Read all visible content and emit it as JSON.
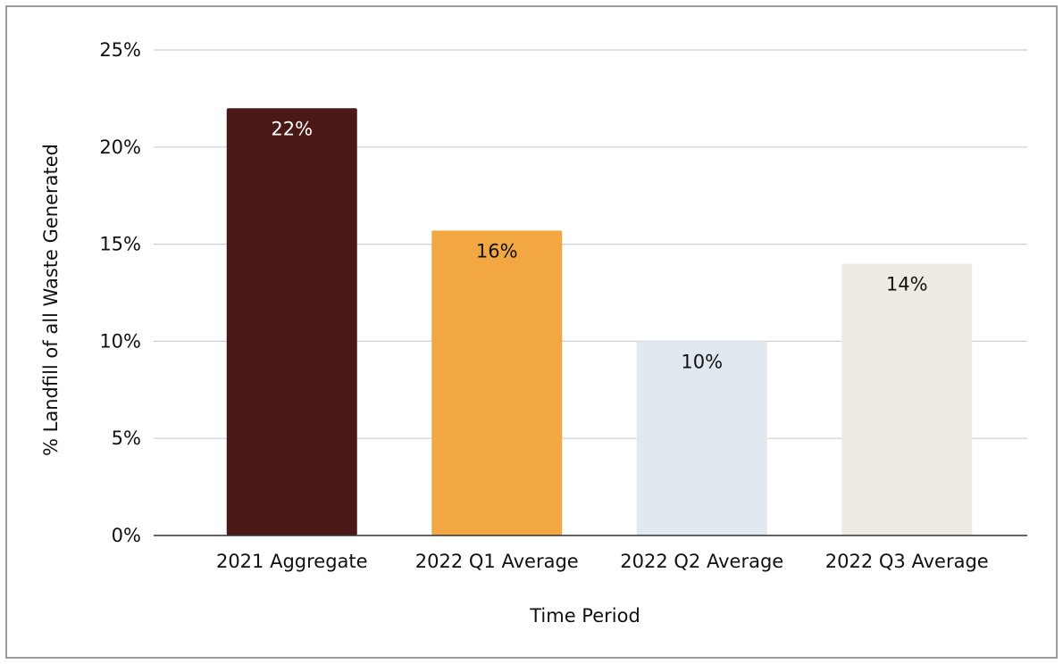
{
  "chart_data": {
    "type": "bar",
    "title": "",
    "xlabel": "Time Period",
    "ylabel": "% Landfill of all Waste Generated",
    "ylim": [
      0,
      25
    ],
    "y_ticks": [
      "0%",
      "5%",
      "10%",
      "15%",
      "20%",
      "25%"
    ],
    "y_tick_values": [
      0,
      5,
      10,
      15,
      20,
      25
    ],
    "categories": [
      "2021 Aggregate",
      "2022 Q1 Average",
      "2022 Q2 Average",
      "2022 Q3 Average"
    ],
    "values": [
      22,
      15.7,
      10,
      14
    ],
    "data_labels": [
      "22%",
      "16%",
      "10%",
      "14%"
    ],
    "bar_colors": [
      "#4a1816",
      "#f2a742",
      "#e1e9f0",
      "#eeece2"
    ],
    "label_colors": [
      "#ffffff",
      "#111111",
      "#111111",
      "#111111"
    ],
    "grid": true,
    "legend": "none"
  }
}
